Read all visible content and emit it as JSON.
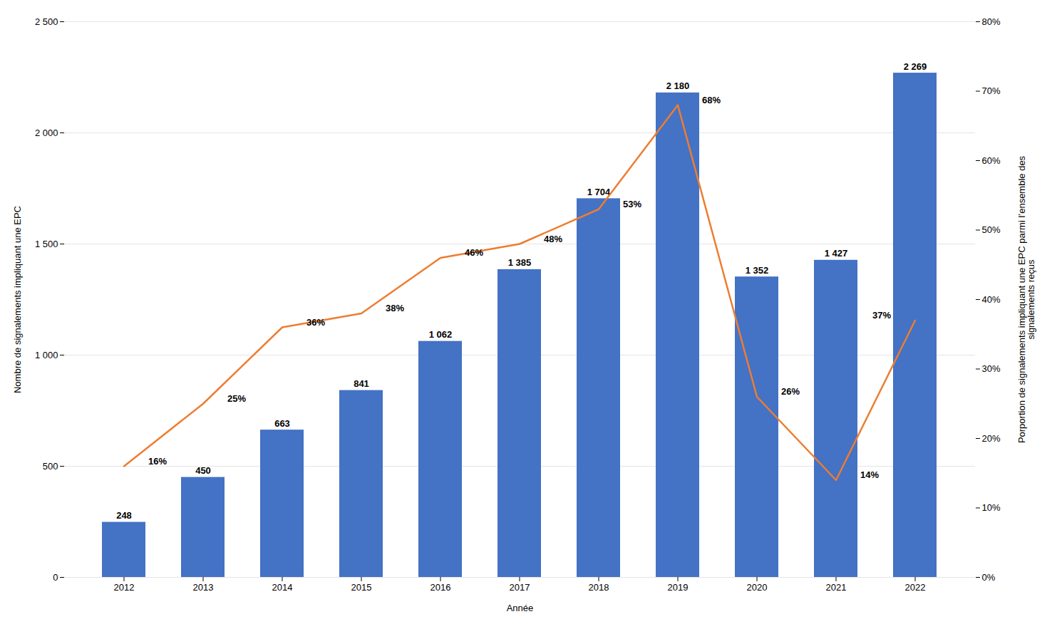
{
  "chart_data": {
    "type": "bar",
    "xlabel": "Année",
    "ylabel": "Nombre de signalements impliquant une EPC",
    "y2label": "Porportion de signalements impliquant une EPC parmi l’ensemble des\nsignalements reçus",
    "categories": [
      "2012",
      "2013",
      "2014",
      "2015",
      "2016",
      "2017",
      "2018",
      "2019",
      "2020",
      "2021",
      "2022"
    ],
    "ylim": [
      0,
      2500
    ],
    "yticks": [
      0,
      500,
      {
        "value": 1000,
        "label": "1 000"
      },
      {
        "value": 1500,
        "label": "1 500"
      },
      {
        "value": 2000,
        "label": "2 000"
      },
      {
        "value": 2500,
        "label": "2 500"
      }
    ],
    "y2lim": [
      0,
      0.8
    ],
    "y2ticks": [
      {
        "value": 0.0,
        "label": "0%"
      },
      {
        "value": 0.1,
        "label": "10%"
      },
      {
        "value": 0.2,
        "label": "20%"
      },
      {
        "value": 0.3,
        "label": "30%"
      },
      {
        "value": 0.4,
        "label": "40%"
      },
      {
        "value": 0.5,
        "label": "50%"
      },
      {
        "value": 0.6,
        "label": "60%"
      },
      {
        "value": 0.7,
        "label": "70%"
      },
      {
        "value": 0.8,
        "label": "80%"
      }
    ],
    "grid": true,
    "data_labels": true,
    "series": [
      {
        "type": "bar",
        "color": "#4472C4",
        "values": [
          248,
          450,
          663,
          841,
          1062,
          1385,
          1704,
          2180,
          1352,
          1427,
          2269
        ],
        "value_labels": [
          "248",
          "450",
          "663",
          "841",
          "1 062",
          "1 385",
          "1 704",
          "2 180",
          "1 352",
          "1 427",
          "2 269"
        ]
      },
      {
        "type": "line",
        "axis": "y2",
        "color": "#ED7D31",
        "values": [
          0.16,
          0.25,
          0.36,
          0.38,
          0.46,
          0.48,
          0.53,
          0.68,
          0.26,
          0.14,
          0.37
        ],
        "value_labels": [
          "16%",
          "25%",
          "36%",
          "38%",
          "46%",
          "48%",
          "53%",
          "68%",
          "26%",
          "14%",
          "37%"
        ]
      }
    ]
  }
}
